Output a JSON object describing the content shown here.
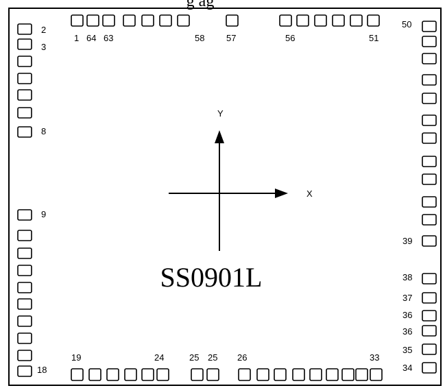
{
  "header_fragment": "g ag",
  "chip_label": "SS0901L",
  "axes": {
    "x_label": "X",
    "y_label": "Y"
  },
  "pin_labels": {
    "top": [
      "1",
      "64",
      "63",
      "58",
      "57",
      "56",
      "51"
    ],
    "left": [
      "2",
      "3",
      "8",
      "9",
      "18"
    ],
    "right": [
      "50",
      "39",
      "38",
      "37",
      "36",
      "36",
      "35",
      "34"
    ],
    "bottom": [
      "19",
      "24",
      "25",
      "25",
      "26",
      "33"
    ]
  },
  "colors": {
    "stroke": "#000000",
    "background": "#ffffff"
  }
}
